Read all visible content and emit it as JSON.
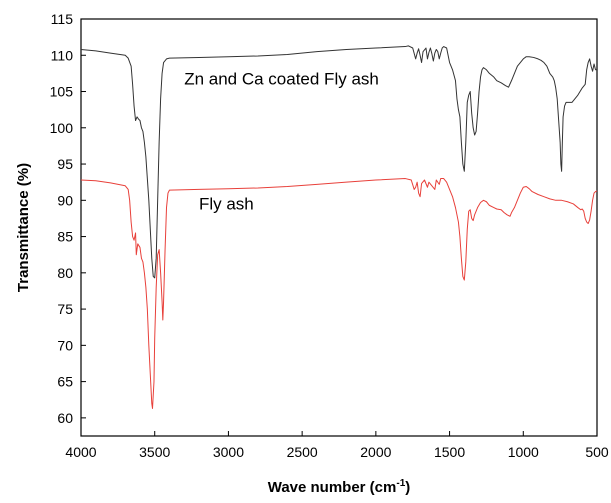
{
  "chart_data": {
    "type": "line",
    "title": "",
    "xlabel": "Wave number (cm",
    "xlabel_superscript": "-1",
    "xlabel_suffix": ")",
    "ylabel": "Transmittance (%)",
    "xlim": [
      4000,
      500
    ],
    "ylim": [
      57.5,
      115
    ],
    "x_reversed": true,
    "grid": false,
    "legend": "none",
    "x_ticks": [
      4000,
      3500,
      3000,
      2500,
      2000,
      1500,
      1000,
      500
    ],
    "y_ticks": [
      60,
      65,
      70,
      75,
      80,
      85,
      90,
      95,
      100,
      105,
      110,
      115
    ],
    "annotations": [
      {
        "text": "Zn and Ca coated Fly ash",
        "x": 3300,
        "y": 106
      },
      {
        "text": "Fly ash",
        "x": 3200,
        "y": 88.7
      }
    ],
    "series": [
      {
        "color": "#333333",
        "points": [
          [
            4000,
            110.8
          ],
          [
            3900,
            110.6
          ],
          [
            3800,
            110.3
          ],
          [
            3700,
            110.0
          ],
          [
            3680,
            109.6
          ],
          [
            3660,
            108.5
          ],
          [
            3650,
            106.0
          ],
          [
            3640,
            103.0
          ],
          [
            3630,
            101.0
          ],
          [
            3620,
            101.5
          ],
          [
            3610,
            101.2
          ],
          [
            3600,
            101.0
          ],
          [
            3590,
            100.0
          ],
          [
            3580,
            99.5
          ],
          [
            3570,
            98.0
          ],
          [
            3560,
            96.0
          ],
          [
            3550,
            93.0
          ],
          [
            3540,
            90.0
          ],
          [
            3530,
            86.0
          ],
          [
            3520,
            82.0
          ],
          [
            3510,
            79.5
          ],
          [
            3500,
            79.3
          ],
          [
            3490,
            82.0
          ],
          [
            3480,
            90.0
          ],
          [
            3470,
            98.0
          ],
          [
            3460,
            104.0
          ],
          [
            3450,
            107.5
          ],
          [
            3440,
            109.0
          ],
          [
            3420,
            109.5
          ],
          [
            3400,
            109.6
          ],
          [
            3200,
            109.7
          ],
          [
            3000,
            109.8
          ],
          [
            2800,
            109.9
          ],
          [
            2600,
            110.1
          ],
          [
            2400,
            110.5
          ],
          [
            2200,
            110.8
          ],
          [
            2000,
            111.0
          ],
          [
            1800,
            111.2
          ],
          [
            1780,
            111.3
          ],
          [
            1750,
            111.0
          ],
          [
            1730,
            109.5
          ],
          [
            1720,
            110.3
          ],
          [
            1710,
            110.9
          ],
          [
            1700,
            110.0
          ],
          [
            1690,
            109.0
          ],
          [
            1680,
            110.5
          ],
          [
            1660,
            111.0
          ],
          [
            1650,
            109.5
          ],
          [
            1640,
            110.4
          ],
          [
            1630,
            111.0
          ],
          [
            1620,
            110.2
          ],
          [
            1610,
            109.2
          ],
          [
            1600,
            110.3
          ],
          [
            1590,
            110.8
          ],
          [
            1580,
            110.5
          ],
          [
            1570,
            109.5
          ],
          [
            1560,
            110.3
          ],
          [
            1550,
            111.0
          ],
          [
            1540,
            111.2
          ],
          [
            1520,
            111.0
          ],
          [
            1500,
            109.0
          ],
          [
            1480,
            108.0
          ],
          [
            1460,
            106.5
          ],
          [
            1450,
            104.0
          ],
          [
            1440,
            102.5
          ],
          [
            1430,
            101.5
          ],
          [
            1420,
            98.0
          ],
          [
            1410,
            95.0
          ],
          [
            1400,
            94.0
          ],
          [
            1390,
            98.0
          ],
          [
            1380,
            103.5
          ],
          [
            1370,
            104.5
          ],
          [
            1360,
            105.0
          ],
          [
            1350,
            102.0
          ],
          [
            1340,
            100.0
          ],
          [
            1330,
            99.0
          ],
          [
            1320,
            99.5
          ],
          [
            1310,
            102.0
          ],
          [
            1300,
            105.0
          ],
          [
            1290,
            107.0
          ],
          [
            1280,
            108.0
          ],
          [
            1270,
            108.3
          ],
          [
            1250,
            108.0
          ],
          [
            1230,
            107.5
          ],
          [
            1200,
            107.0
          ],
          [
            1180,
            106.5
          ],
          [
            1150,
            106.2
          ],
          [
            1120,
            105.8
          ],
          [
            1100,
            105.6
          ],
          [
            1080,
            106.5
          ],
          [
            1060,
            107.5
          ],
          [
            1040,
            108.5
          ],
          [
            1000,
            109.5
          ],
          [
            980,
            109.8
          ],
          [
            960,
            109.8
          ],
          [
            930,
            109.7
          ],
          [
            900,
            109.5
          ],
          [
            880,
            109.3
          ],
          [
            860,
            109.0
          ],
          [
            840,
            108.5
          ],
          [
            820,
            107.5
          ],
          [
            800,
            107.0
          ],
          [
            790,
            106.5
          ],
          [
            780,
            105.5
          ],
          [
            770,
            104.0
          ],
          [
            760,
            101.0
          ],
          [
            750,
            98.0
          ],
          [
            745,
            95.0
          ],
          [
            740,
            94.0
          ],
          [
            735,
            98.0
          ],
          [
            730,
            101.5
          ],
          [
            720,
            103.0
          ],
          [
            710,
            103.5
          ],
          [
            690,
            103.5
          ],
          [
            670,
            103.5
          ],
          [
            650,
            104.0
          ],
          [
            630,
            104.5
          ],
          [
            600,
            105.5
          ],
          [
            580,
            106.0
          ],
          [
            570,
            108.0
          ],
          [
            560,
            109.0
          ],
          [
            550,
            109.5
          ],
          [
            540,
            108.5
          ],
          [
            530,
            107.8
          ],
          [
            520,
            108.8
          ],
          [
            510,
            108.0
          ],
          [
            500,
            108.0
          ]
        ]
      },
      {
        "color": "#e8403a",
        "points": [
          [
            4000,
            92.8
          ],
          [
            3900,
            92.7
          ],
          [
            3800,
            92.4
          ],
          [
            3700,
            92.0
          ],
          [
            3680,
            91.5
          ],
          [
            3670,
            90.0
          ],
          [
            3660,
            87.0
          ],
          [
            3650,
            85.0
          ],
          [
            3640,
            84.5
          ],
          [
            3630,
            85.5
          ],
          [
            3625,
            82.5
          ],
          [
            3615,
            84.0
          ],
          [
            3600,
            83.5
          ],
          [
            3590,
            82.0
          ],
          [
            3580,
            81.5
          ],
          [
            3570,
            80.0
          ],
          [
            3560,
            78.0
          ],
          [
            3550,
            75.0
          ],
          [
            3540,
            70.0
          ],
          [
            3530,
            66.0
          ],
          [
            3520,
            62.0
          ],
          [
            3515,
            61.3
          ],
          [
            3505,
            65.0
          ],
          [
            3500,
            71.0
          ],
          [
            3490,
            78.0
          ],
          [
            3480,
            82.5
          ],
          [
            3470,
            83.2
          ],
          [
            3460,
            80.0
          ],
          [
            3450,
            76.0
          ],
          [
            3445,
            73.5
          ],
          [
            3440,
            76.0
          ],
          [
            3430,
            83.0
          ],
          [
            3420,
            89.0
          ],
          [
            3410,
            91.0
          ],
          [
            3400,
            91.4
          ],
          [
            3200,
            91.5
          ],
          [
            3000,
            91.6
          ],
          [
            2800,
            91.7
          ],
          [
            2600,
            91.9
          ],
          [
            2400,
            92.2
          ],
          [
            2200,
            92.5
          ],
          [
            2000,
            92.8
          ],
          [
            1800,
            93.0
          ],
          [
            1760,
            92.8
          ],
          [
            1740,
            91.5
          ],
          [
            1730,
            91.8
          ],
          [
            1720,
            92.5
          ],
          [
            1710,
            91.0
          ],
          [
            1700,
            90.5
          ],
          [
            1690,
            92.3
          ],
          [
            1670,
            92.8
          ],
          [
            1650,
            91.8
          ],
          [
            1640,
            92.5
          ],
          [
            1620,
            92.0
          ],
          [
            1600,
            91.5
          ],
          [
            1590,
            92.8
          ],
          [
            1570,
            92.2
          ],
          [
            1560,
            93.0
          ],
          [
            1540,
            93.0
          ],
          [
            1520,
            92.5
          ],
          [
            1500,
            91.5
          ],
          [
            1480,
            90.5
          ],
          [
            1460,
            89.0
          ],
          [
            1440,
            87.0
          ],
          [
            1430,
            85.0
          ],
          [
            1420,
            82.0
          ],
          [
            1410,
            79.5
          ],
          [
            1400,
            79.0
          ],
          [
            1390,
            81.5
          ],
          [
            1380,
            86.0
          ],
          [
            1370,
            88.5
          ],
          [
            1360,
            88.7
          ],
          [
            1350,
            87.5
          ],
          [
            1340,
            87.2
          ],
          [
            1330,
            88.0
          ],
          [
            1310,
            89.0
          ],
          [
            1290,
            89.7
          ],
          [
            1270,
            90.0
          ],
          [
            1250,
            89.8
          ],
          [
            1230,
            89.3
          ],
          [
            1200,
            89.0
          ],
          [
            1180,
            88.8
          ],
          [
            1150,
            88.7
          ],
          [
            1130,
            88.3
          ],
          [
            1110,
            88.0
          ],
          [
            1090,
            87.8
          ],
          [
            1080,
            88.3
          ],
          [
            1060,
            89.0
          ],
          [
            1040,
            90.0
          ],
          [
            1020,
            91.0
          ],
          [
            1000,
            91.8
          ],
          [
            980,
            91.9
          ],
          [
            960,
            91.6
          ],
          [
            940,
            91.2
          ],
          [
            900,
            90.8
          ],
          [
            860,
            90.5
          ],
          [
            820,
            90.2
          ],
          [
            780,
            90.0
          ],
          [
            740,
            90.0
          ],
          [
            700,
            89.8
          ],
          [
            660,
            89.5
          ],
          [
            630,
            89.0
          ],
          [
            610,
            88.7
          ],
          [
            600,
            88.8
          ],
          [
            590,
            88.5
          ],
          [
            580,
            87.5
          ],
          [
            570,
            87.0
          ],
          [
            560,
            86.8
          ],
          [
            550,
            87.3
          ],
          [
            540,
            88.5
          ],
          [
            530,
            90.0
          ],
          [
            520,
            91.0
          ],
          [
            510,
            91.2
          ],
          [
            500,
            91.3
          ]
        ]
      }
    ]
  }
}
